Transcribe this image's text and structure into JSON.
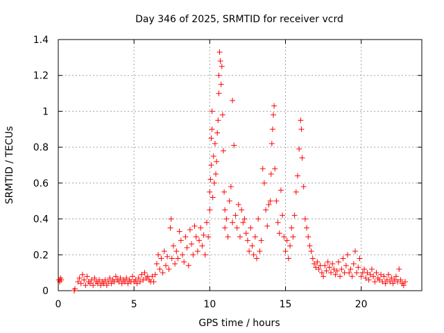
{
  "chart_data": {
    "type": "scatter",
    "title": "Day 346 of 2025, SRMTID for receiver vcrd",
    "xlabel": "GPS time / hours",
    "ylabel": "SRMTID / TECUs",
    "xlim": [
      0,
      24
    ],
    "ylim": [
      0,
      1.4
    ],
    "xticks": [
      0,
      5,
      10,
      15,
      20
    ],
    "xtick_labels": [
      "0",
      "5",
      "10",
      "15",
      "20"
    ],
    "yticks": [
      0,
      0.2,
      0.4,
      0.6,
      0.8,
      1,
      1.2,
      1.4
    ],
    "ytick_labels": [
      "0",
      "0.2",
      "0.4",
      "0.6",
      "0.8",
      "1",
      "1.2",
      "1.4"
    ],
    "grid": true,
    "marker": "+",
    "marker_color": "#ff0000",
    "series": [
      {
        "name": "SRMTID",
        "points": [
          [
            0.05,
            0.06
          ],
          [
            0.1,
            0.05
          ],
          [
            0.15,
            0.07
          ],
          [
            0.2,
            0.06
          ],
          [
            1.05,
            0.0
          ],
          [
            1.1,
            0.01
          ],
          [
            1.3,
            0.05
          ],
          [
            1.4,
            0.07
          ],
          [
            1.5,
            0.04
          ],
          [
            1.6,
            0.09
          ],
          [
            1.7,
            0.06
          ],
          [
            1.8,
            0.03
          ],
          [
            1.9,
            0.08
          ],
          [
            2.0,
            0.05
          ],
          [
            2.1,
            0.04
          ],
          [
            2.2,
            0.06
          ],
          [
            2.3,
            0.03
          ],
          [
            2.4,
            0.07
          ],
          [
            2.5,
            0.05
          ],
          [
            2.6,
            0.04
          ],
          [
            2.7,
            0.06
          ],
          [
            2.8,
            0.03
          ],
          [
            2.9,
            0.05
          ],
          [
            3.0,
            0.04
          ],
          [
            3.1,
            0.06
          ],
          [
            3.2,
            0.03
          ],
          [
            3.3,
            0.05
          ],
          [
            3.4,
            0.07
          ],
          [
            3.5,
            0.04
          ],
          [
            3.6,
            0.06
          ],
          [
            3.7,
            0.05
          ],
          [
            3.8,
            0.08
          ],
          [
            3.9,
            0.06
          ],
          [
            4.0,
            0.05
          ],
          [
            4.1,
            0.07
          ],
          [
            4.2,
            0.04
          ],
          [
            4.3,
            0.06
          ],
          [
            4.4,
            0.05
          ],
          [
            4.5,
            0.07
          ],
          [
            4.6,
            0.04
          ],
          [
            4.7,
            0.06
          ],
          [
            4.8,
            0.05
          ],
          [
            4.9,
            0.08
          ],
          [
            5.0,
            0.05
          ],
          [
            5.1,
            0.06
          ],
          [
            5.2,
            0.04
          ],
          [
            5.3,
            0.07
          ],
          [
            5.4,
            0.05
          ],
          [
            5.5,
            0.09
          ],
          [
            5.6,
            0.06
          ],
          [
            5.7,
            0.1
          ],
          [
            5.8,
            0.07
          ],
          [
            5.9,
            0.08
          ],
          [
            6.0,
            0.06
          ],
          [
            6.1,
            0.05
          ],
          [
            6.2,
            0.08
          ],
          [
            6.3,
            0.05
          ],
          [
            6.4,
            0.09
          ],
          [
            6.5,
            0.15
          ],
          [
            6.6,
            0.2
          ],
          [
            6.7,
            0.12
          ],
          [
            6.8,
            0.18
          ],
          [
            6.9,
            0.1
          ],
          [
            7.0,
            0.22
          ],
          [
            7.1,
            0.14
          ],
          [
            7.2,
            0.19
          ],
          [
            7.3,
            0.12
          ],
          [
            7.4,
            0.35
          ],
          [
            7.45,
            0.4
          ],
          [
            7.5,
            0.18
          ],
          [
            7.6,
            0.25
          ],
          [
            7.7,
            0.15
          ],
          [
            7.8,
            0.22
          ],
          [
            7.9,
            0.18
          ],
          [
            8.0,
            0.33
          ],
          [
            8.1,
            0.28
          ],
          [
            8.2,
            0.2
          ],
          [
            8.3,
            0.16
          ],
          [
            8.4,
            0.3
          ],
          [
            8.5,
            0.24
          ],
          [
            8.6,
            0.14
          ],
          [
            8.7,
            0.34
          ],
          [
            8.8,
            0.26
          ],
          [
            8.9,
            0.2
          ],
          [
            9.0,
            0.36
          ],
          [
            9.1,
            0.3
          ],
          [
            9.2,
            0.22
          ],
          [
            9.3,
            0.28
          ],
          [
            9.4,
            0.35
          ],
          [
            9.5,
            0.25
          ],
          [
            9.6,
            0.31
          ],
          [
            9.7,
            0.2
          ],
          [
            9.8,
            0.38
          ],
          [
            9.9,
            0.3
          ],
          [
            10.0,
            0.45
          ],
          [
            10.0,
            0.55
          ],
          [
            10.05,
            0.62
          ],
          [
            10.1,
            0.7
          ],
          [
            10.1,
            0.85
          ],
          [
            10.15,
            0.9
          ],
          [
            10.15,
            1.0
          ],
          [
            10.2,
            0.52
          ],
          [
            10.25,
            0.75
          ],
          [
            10.3,
            0.6
          ],
          [
            10.35,
            0.82
          ],
          [
            10.4,
            0.65
          ],
          [
            10.45,
            0.72
          ],
          [
            10.5,
            0.88
          ],
          [
            10.55,
            0.95
          ],
          [
            10.6,
            1.1
          ],
          [
            10.6,
            1.2
          ],
          [
            10.65,
            1.33
          ],
          [
            10.7,
            1.28
          ],
          [
            10.75,
            1.15
          ],
          [
            10.8,
            1.25
          ],
          [
            10.85,
            0.98
          ],
          [
            10.9,
            0.78
          ],
          [
            10.95,
            0.55
          ],
          [
            11.0,
            0.45
          ],
          [
            11.0,
            0.35
          ],
          [
            11.1,
            0.4
          ],
          [
            11.2,
            0.3
          ],
          [
            11.3,
            0.5
          ],
          [
            11.4,
            0.58
          ],
          [
            11.5,
            0.38
          ],
          [
            11.5,
            1.06
          ],
          [
            11.6,
            0.81
          ],
          [
            11.7,
            0.42
          ],
          [
            11.8,
            0.35
          ],
          [
            11.9,
            0.48
          ],
          [
            12.0,
            0.3
          ],
          [
            12.1,
            0.45
          ],
          [
            12.2,
            0.38
          ],
          [
            12.3,
            0.4
          ],
          [
            12.4,
            0.32
          ],
          [
            12.5,
            0.28
          ],
          [
            12.6,
            0.22
          ],
          [
            12.7,
            0.35
          ],
          [
            12.8,
            0.25
          ],
          [
            12.9,
            0.2
          ],
          [
            13.0,
            0.3
          ],
          [
            13.1,
            0.18
          ],
          [
            13.2,
            0.4
          ],
          [
            13.3,
            0.22
          ],
          [
            13.4,
            0.28
          ],
          [
            13.5,
            0.68
          ],
          [
            13.6,
            0.6
          ],
          [
            13.7,
            0.45
          ],
          [
            13.8,
            0.36
          ],
          [
            13.9,
            0.48
          ],
          [
            14.0,
            0.5
          ],
          [
            14.05,
            0.65
          ],
          [
            14.1,
            0.82
          ],
          [
            14.15,
            0.9
          ],
          [
            14.2,
            0.98
          ],
          [
            14.25,
            1.03
          ],
          [
            14.3,
            0.68
          ],
          [
            14.4,
            0.5
          ],
          [
            14.5,
            0.38
          ],
          [
            14.6,
            0.32
          ],
          [
            14.7,
            0.56
          ],
          [
            14.8,
            0.42
          ],
          [
            14.9,
            0.3
          ],
          [
            15.0,
            0.22
          ],
          [
            15.1,
            0.28
          ],
          [
            15.2,
            0.18
          ],
          [
            15.3,
            0.25
          ],
          [
            15.4,
            0.35
          ],
          [
            15.5,
            0.3
          ],
          [
            15.6,
            0.42
          ],
          [
            15.7,
            0.55
          ],
          [
            15.8,
            0.64
          ],
          [
            15.9,
            0.79
          ],
          [
            16.0,
            0.95
          ],
          [
            16.05,
            0.9
          ],
          [
            16.1,
            0.74
          ],
          [
            16.2,
            0.58
          ],
          [
            16.3,
            0.4
          ],
          [
            16.4,
            0.35
          ],
          [
            16.5,
            0.3
          ],
          [
            16.6,
            0.25
          ],
          [
            16.7,
            0.22
          ],
          [
            16.8,
            0.18
          ],
          [
            16.9,
            0.15
          ],
          [
            17.0,
            0.13
          ],
          [
            17.1,
            0.16
          ],
          [
            17.2,
            0.12
          ],
          [
            17.3,
            0.14
          ],
          [
            17.4,
            0.1
          ],
          [
            17.5,
            0.08
          ],
          [
            17.6,
            0.14
          ],
          [
            17.7,
            0.11
          ],
          [
            17.8,
            0.16
          ],
          [
            17.9,
            0.13
          ],
          [
            18.0,
            0.1
          ],
          [
            18.1,
            0.15
          ],
          [
            18.2,
            0.12
          ],
          [
            18.3,
            0.09
          ],
          [
            18.4,
            0.11
          ],
          [
            18.5,
            0.16
          ],
          [
            18.6,
            0.08
          ],
          [
            18.7,
            0.12
          ],
          [
            18.8,
            0.18
          ],
          [
            18.9,
            0.1
          ],
          [
            19.0,
            0.14
          ],
          [
            19.1,
            0.2
          ],
          [
            19.2,
            0.1
          ],
          [
            19.3,
            0.12
          ],
          [
            19.4,
            0.08
          ],
          [
            19.5,
            0.15
          ],
          [
            19.6,
            0.22
          ],
          [
            19.7,
            0.1
          ],
          [
            19.8,
            0.13
          ],
          [
            19.9,
            0.18
          ],
          [
            20.0,
            0.08
          ],
          [
            20.1,
            0.1
          ],
          [
            20.2,
            0.12
          ],
          [
            20.3,
            0.07
          ],
          [
            20.4,
            0.1
          ],
          [
            20.5,
            0.06
          ],
          [
            20.6,
            0.09
          ],
          [
            20.7,
            0.12
          ],
          [
            20.8,
            0.08
          ],
          [
            20.9,
            0.05
          ],
          [
            21.0,
            0.1
          ],
          [
            21.1,
            0.07
          ],
          [
            21.2,
            0.06
          ],
          [
            21.3,
            0.09
          ],
          [
            21.4,
            0.05
          ],
          [
            21.5,
            0.08
          ],
          [
            21.6,
            0.04
          ],
          [
            21.7,
            0.06
          ],
          [
            21.8,
            0.09
          ],
          [
            21.9,
            0.05
          ],
          [
            22.0,
            0.07
          ],
          [
            22.1,
            0.04
          ],
          [
            22.2,
            0.06
          ],
          [
            22.3,
            0.08
          ],
          [
            22.4,
            0.05
          ],
          [
            22.5,
            0.12
          ],
          [
            22.6,
            0.06
          ],
          [
            22.7,
            0.04
          ],
          [
            22.8,
            0.03
          ],
          [
            22.9,
            0.05
          ]
        ]
      }
    ]
  }
}
